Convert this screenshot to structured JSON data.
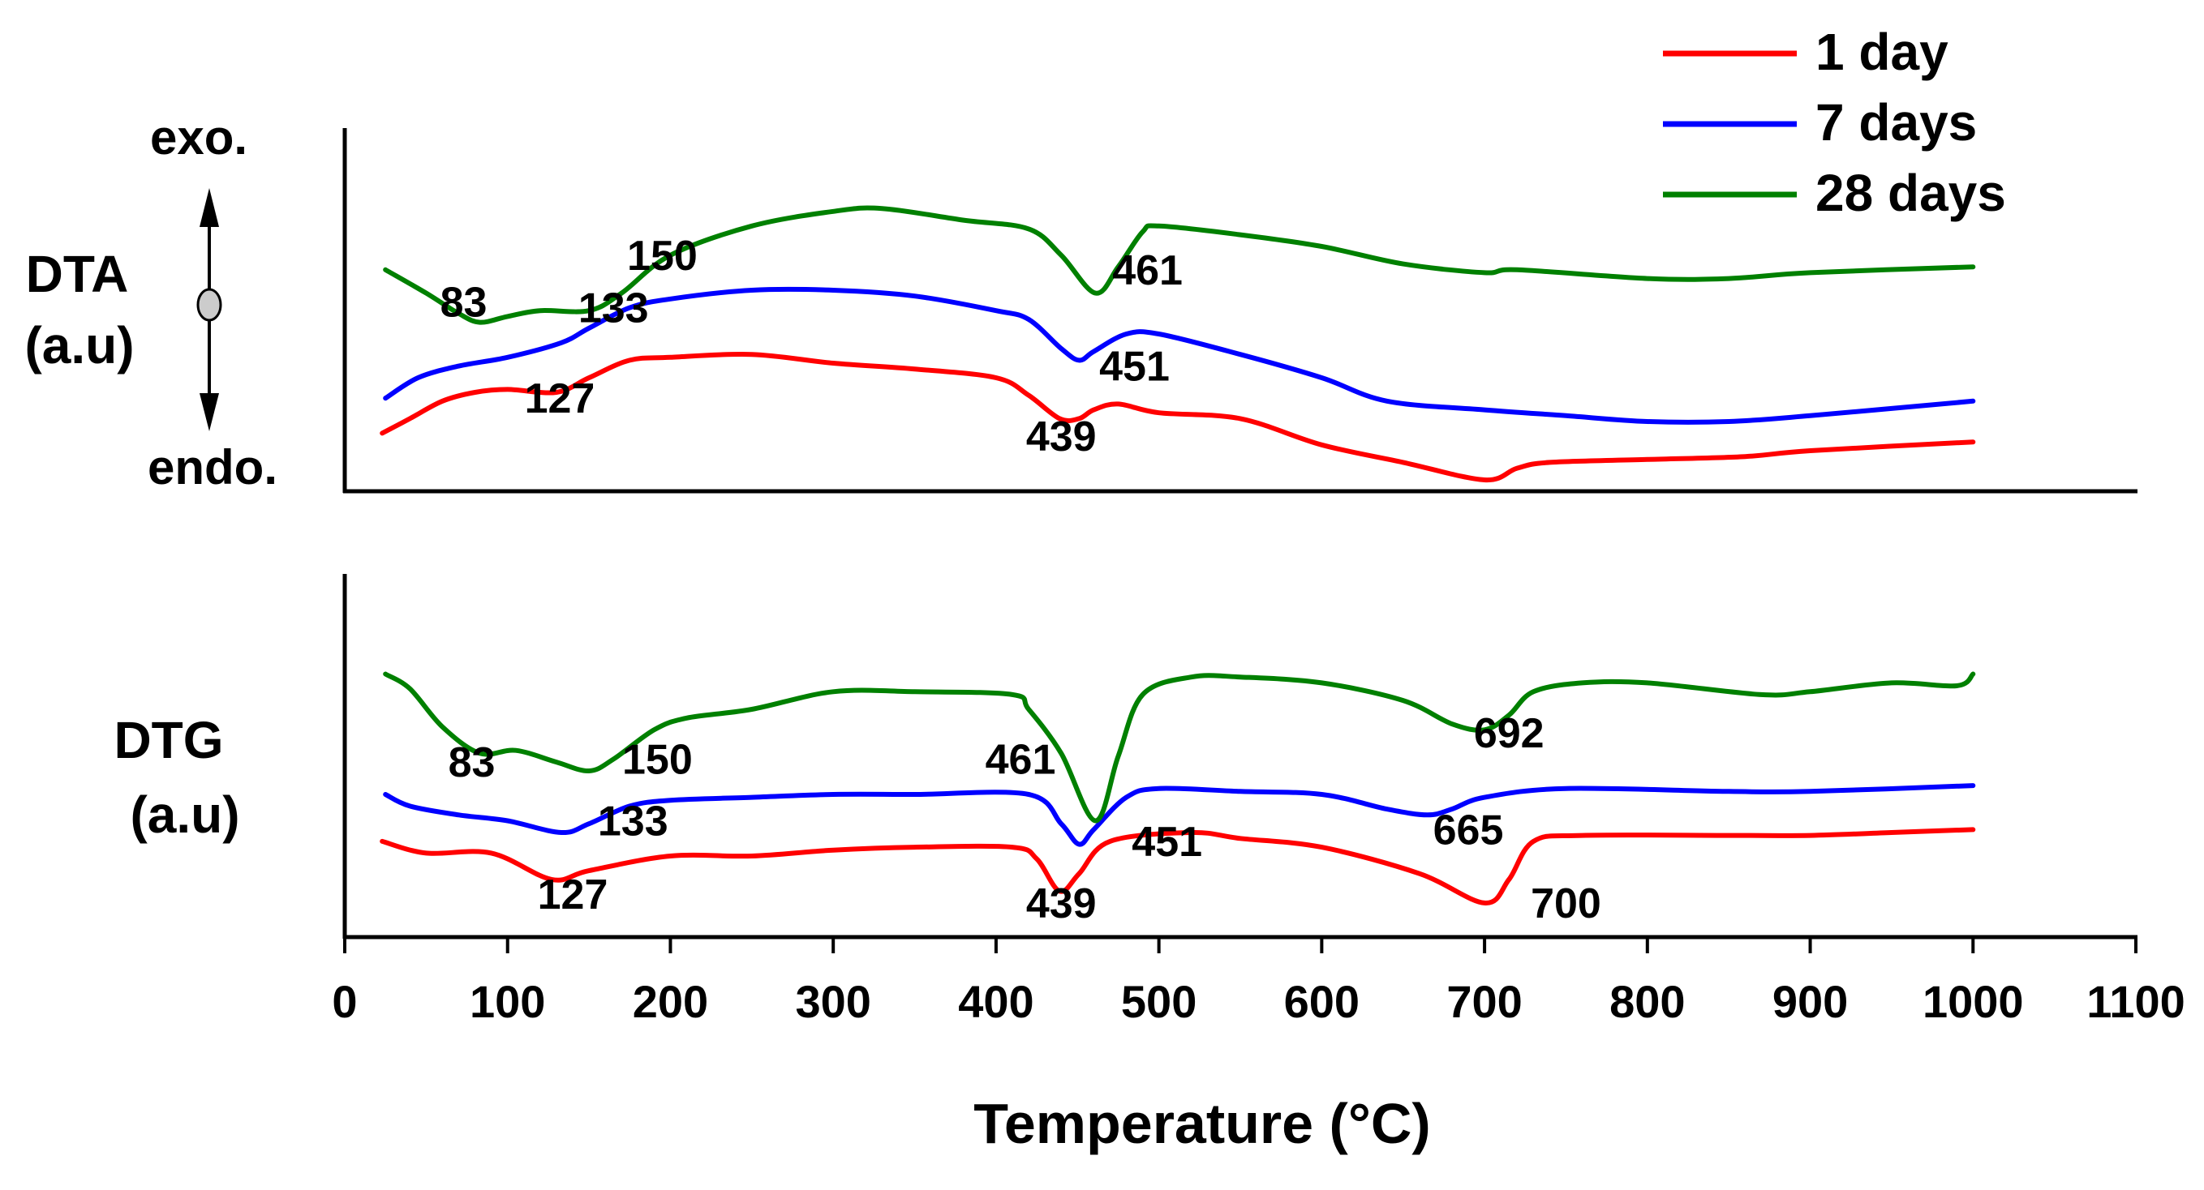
{
  "chart_data": {
    "type": "line",
    "xlabel": "Temperature (°C)",
    "xlim": [
      0,
      1100
    ],
    "xticks": [
      0,
      100,
      200,
      300,
      400,
      500,
      600,
      700,
      800,
      900,
      1000,
      1100
    ],
    "legend": {
      "placement": "top-right",
      "entries": [
        {
          "name": "1 day",
          "color": "#ff0000"
        },
        {
          "name": "7 days",
          "color": "#0000ff"
        },
        {
          "name": "28 days",
          "color": "#008000"
        }
      ]
    },
    "panels": [
      {
        "id": "dta",
        "label_line1": "DTA",
        "label_line2": "(a.u)",
        "direction_top": "exo.",
        "direction_bottom": "endo.",
        "ylim": [
          0,
          100
        ],
        "series": [
          {
            "name": "1 day",
            "color": "#ff0000",
            "points": [
              [
                23,
                16
              ],
              [
                40,
                21
              ],
              [
                60,
                27
              ],
              [
                80,
                30
              ],
              [
                100,
                31
              ],
              [
                130,
                30
              ],
              [
                150,
                35
              ],
              [
                175,
                41
              ],
              [
                200,
                42
              ],
              [
                250,
                43
              ],
              [
                300,
                40
              ],
              [
                350,
                38
              ],
              [
                400,
                35
              ],
              [
                420,
                29
              ],
              [
                439,
                21
              ],
              [
                451,
                21
              ],
              [
                460,
                24
              ],
              [
                475,
                26
              ],
              [
                500,
                23
              ],
              [
                550,
                21
              ],
              [
                600,
                12
              ],
              [
                650,
                6
              ],
              [
                700,
                0
              ],
              [
                720,
                4
              ],
              [
                740,
                6
              ],
              [
                800,
                7
              ],
              [
                860,
                8
              ],
              [
                900,
                10
              ],
              [
                1000,
                13
              ]
            ]
          },
          {
            "name": "7 days",
            "color": "#0000ff",
            "points": [
              [
                25,
                28
              ],
              [
                45,
                35
              ],
              [
                70,
                39
              ],
              [
                100,
                42
              ],
              [
                133,
                47
              ],
              [
                150,
                52
              ],
              [
                175,
                59
              ],
              [
                200,
                62
              ],
              [
                250,
                65
              ],
              [
                300,
                65
              ],
              [
                350,
                63
              ],
              [
                400,
                58
              ],
              [
                420,
                55
              ],
              [
                440,
                45
              ],
              [
                451,
                41
              ],
              [
                460,
                44
              ],
              [
                480,
                50
              ],
              [
                500,
                50
              ],
              [
                550,
                43
              ],
              [
                600,
                35
              ],
              [
                640,
                27
              ],
              [
                700,
                24
              ],
              [
                750,
                22
              ],
              [
                800,
                20
              ],
              [
                850,
                20
              ],
              [
                900,
                22
              ],
              [
                1000,
                27
              ]
            ]
          },
          {
            "name": "28 days",
            "color": "#008000",
            "points": [
              [
                25,
                72
              ],
              [
                50,
                64
              ],
              [
                70,
                57
              ],
              [
                83,
                54
              ],
              [
                100,
                56
              ],
              [
                120,
                58
              ],
              [
                150,
                58
              ],
              [
                170,
                64
              ],
              [
                200,
                77
              ],
              [
                250,
                87
              ],
              [
                300,
                92
              ],
              [
                330,
                93
              ],
              [
                380,
                89
              ],
              [
                420,
                86
              ],
              [
                440,
                77
              ],
              [
                461,
                64
              ],
              [
                475,
                73
              ],
              [
                490,
                85
              ],
              [
                500,
                87
              ],
              [
                550,
                84
              ],
              [
                600,
                80
              ],
              [
                650,
                74
              ],
              [
                700,
                71
              ],
              [
                720,
                72
              ],
              [
                800,
                69
              ],
              [
                850,
                69
              ],
              [
                900,
                71
              ],
              [
                1000,
                73
              ]
            ]
          }
        ],
        "annotations": [
          {
            "text": "127",
            "x": 132,
            "y": 23
          },
          {
            "text": "133",
            "x": 165,
            "y": 54
          },
          {
            "text": "439",
            "x": 440,
            "y": 10
          },
          {
            "text": "451",
            "x": 485,
            "y": 34
          },
          {
            "text": "83",
            "x": 73,
            "y": 56
          },
          {
            "text": "150",
            "x": 195,
            "y": 72
          },
          {
            "text": "461",
            "x": 493,
            "y": 67
          }
        ]
      },
      {
        "id": "dtg",
        "label_line1": "DTG",
        "label_line2": "(a.u)",
        "ylim": [
          0,
          100
        ],
        "series": [
          {
            "name": "1 day",
            "color": "#ff0000",
            "points": [
              [
                23,
                26
              ],
              [
                50,
                22
              ],
              [
                90,
                22
              ],
              [
                127,
                13
              ],
              [
                150,
                16
              ],
              [
                200,
                21
              ],
              [
                250,
                21
              ],
              [
                300,
                23
              ],
              [
                350,
                24
              ],
              [
                410,
                24
              ],
              [
                425,
                20
              ],
              [
                439,
                9
              ],
              [
                451,
                15
              ],
              [
                470,
                26
              ],
              [
                520,
                29
              ],
              [
                550,
                27
              ],
              [
                600,
                24
              ],
              [
                660,
                15
              ],
              [
                700,
                5
              ],
              [
                715,
                13
              ],
              [
                730,
                26
              ],
              [
                760,
                28
              ],
              [
                850,
                28
              ],
              [
                900,
                28
              ],
              [
                950,
                29
              ],
              [
                1000,
                30
              ]
            ]
          },
          {
            "name": "7 days",
            "color": "#0000ff",
            "points": [
              [
                25,
                42
              ],
              [
                40,
                38
              ],
              [
                70,
                35
              ],
              [
                100,
                33
              ],
              [
                133,
                29
              ],
              [
                150,
                32
              ],
              [
                175,
                38
              ],
              [
                200,
                40
              ],
              [
                250,
                41
              ],
              [
                300,
                42
              ],
              [
                350,
                42
              ],
              [
                420,
                42
              ],
              [
                440,
                32
              ],
              [
                451,
                25
              ],
              [
                460,
                30
              ],
              [
                480,
                41
              ],
              [
                500,
                44
              ],
              [
                550,
                43
              ],
              [
                600,
                42
              ],
              [
                640,
                37
              ],
              [
                665,
                35
              ],
              [
                680,
                37
              ],
              [
                700,
                41
              ],
              [
                750,
                44
              ],
              [
                850,
                43
              ],
              [
                900,
                43
              ],
              [
                1000,
                45
              ]
            ]
          },
          {
            "name": "28 days",
            "color": "#008000",
            "points": [
              [
                25,
                83
              ],
              [
                40,
                78
              ],
              [
                60,
                65
              ],
              [
                83,
                56
              ],
              [
                105,
                57
              ],
              [
                130,
                53
              ],
              [
                150,
                50
              ],
              [
                165,
                54
              ],
              [
                190,
                64
              ],
              [
                210,
                68
              ],
              [
                250,
                71
              ],
              [
                300,
                77
              ],
              [
                350,
                77
              ],
              [
                410,
                76
              ],
              [
                420,
                71
              ],
              [
                440,
                56
              ],
              [
                461,
                33
              ],
              [
                475,
                55
              ],
              [
                490,
                76
              ],
              [
                520,
                82
              ],
              [
                550,
                82
              ],
              [
                600,
                80
              ],
              [
                650,
                74
              ],
              [
                680,
                66
              ],
              [
                700,
                64
              ],
              [
                715,
                69
              ],
              [
                730,
                77
              ],
              [
                760,
                80
              ],
              [
                800,
                80
              ],
              [
                870,
                76
              ],
              [
                900,
                77
              ],
              [
                950,
                80
              ],
              [
                990,
                79
              ],
              [
                1000,
                83
              ]
            ]
          }
        ],
        "annotations": [
          {
            "text": "127",
            "x": 140,
            "y": 3
          },
          {
            "text": "133",
            "x": 177,
            "y": 28
          },
          {
            "text": "439",
            "x": 440,
            "y": 0
          },
          {
            "text": "451",
            "x": 505,
            "y": 21
          },
          {
            "text": "83",
            "x": 78,
            "y": 48
          },
          {
            "text": "150",
            "x": 192,
            "y": 49
          },
          {
            "text": "461",
            "x": 415,
            "y": 49
          },
          {
            "text": "665",
            "x": 690,
            "y": 25
          },
          {
            "text": "692",
            "x": 715,
            "y": 58
          },
          {
            "text": "700",
            "x": 750,
            "y": 0
          }
        ]
      }
    ]
  }
}
